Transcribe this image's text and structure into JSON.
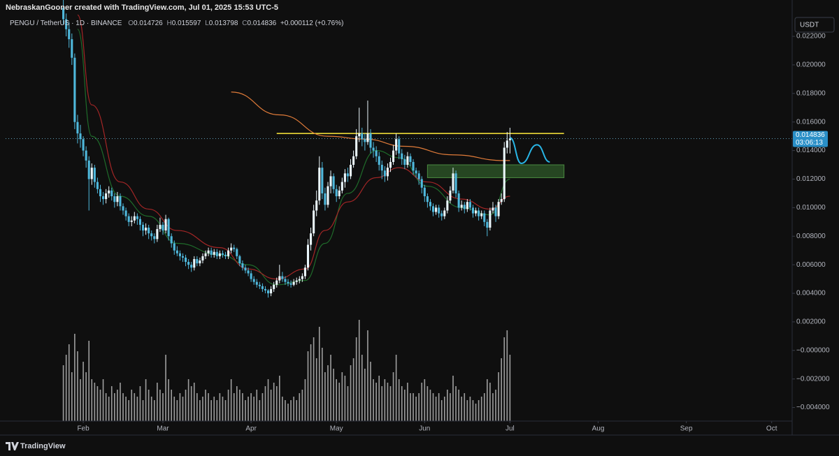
{
  "chart_data": {
    "type": "candlestick",
    "credit": "NebraskanGooner created with TradingView.com, Jul 01, 2025 15:53 UTC-5",
    "title": "PENGU / TetherUS · 1D · BINANCE",
    "ohlc_labels": [
      "O",
      "H",
      "L",
      "C"
    ],
    "change": "+0.000112 (+0.76%)",
    "currency": "USDT",
    "countdown": "03:06:13",
    "brand": "TradingView",
    "up_color": "#eaf6fb",
    "down_color": "#4fb8dc",
    "volume_color": "#cfcfcf",
    "grid": false,
    "open": [
      0.024,
      0.0232,
      0.0225,
      0.0218,
      0.0205,
      0.016,
      0.0152,
      0.0148,
      0.014,
      0.0133,
      0.012,
      0.0128,
      0.0118,
      0.0113,
      0.0108,
      0.0106,
      0.011,
      0.0112,
      0.0108,
      0.0104,
      0.0108,
      0.0101,
      0.0098,
      0.0094,
      0.009,
      0.0091,
      0.0094,
      0.0092,
      0.0088,
      0.0084,
      0.0086,
      0.0082,
      0.008,
      0.0078,
      0.0085,
      0.0088,
      0.0084,
      0.0092,
      0.008,
      0.0075,
      0.007,
      0.0068,
      0.0066,
      0.0065,
      0.0062,
      0.006,
      0.0058,
      0.0064,
      0.0061,
      0.0063,
      0.0066,
      0.0068,
      0.007,
      0.0067,
      0.0069,
      0.0066,
      0.0068,
      0.0067,
      0.0066,
      0.007,
      0.0072,
      0.0071,
      0.0066,
      0.0061,
      0.0058,
      0.0056,
      0.0054,
      0.005,
      0.0048,
      0.0046,
      0.0045,
      0.0043,
      0.0042,
      0.004,
      0.0043,
      0.0046,
      0.0049,
      0.0052,
      0.005,
      0.0048,
      0.0047,
      0.0046,
      0.0048,
      0.0049,
      0.005,
      0.0052,
      0.0058,
      0.0074,
      0.0082,
      0.0098,
      0.0105,
      0.0128,
      0.011,
      0.0102,
      0.0115,
      0.0122,
      0.0113,
      0.0108,
      0.0112,
      0.0118,
      0.0124,
      0.0122,
      0.013,
      0.0136,
      0.015,
      0.0152,
      0.0148,
      0.0146,
      0.0152,
      0.0142,
      0.014,
      0.0136,
      0.013,
      0.0126,
      0.0122,
      0.0128,
      0.0132,
      0.014,
      0.0148,
      0.0138,
      0.0134,
      0.013,
      0.0136,
      0.0132,
      0.0126,
      0.0124,
      0.012,
      0.0114,
      0.0108,
      0.0104,
      0.0101,
      0.0097,
      0.01,
      0.0096,
      0.0094,
      0.0098,
      0.0105,
      0.0112,
      0.0124,
      0.011,
      0.01,
      0.0102,
      0.0099,
      0.0104,
      0.01,
      0.0096,
      0.0098,
      0.0094,
      0.0096,
      0.009,
      0.0086,
      0.0098,
      0.01,
      0.0094,
      0.0104,
      0.0106,
      0.0142,
      0.014726
    ],
    "high": [
      0.0248,
      0.0236,
      0.023,
      0.0222,
      0.0208,
      0.0165,
      0.0158,
      0.015,
      0.0143,
      0.0136,
      0.0131,
      0.013,
      0.0121,
      0.0116,
      0.0111,
      0.0113,
      0.0115,
      0.0114,
      0.011,
      0.0111,
      0.011,
      0.0103,
      0.01,
      0.0096,
      0.0094,
      0.0097,
      0.0096,
      0.0094,
      0.009,
      0.0089,
      0.0088,
      0.0084,
      0.0082,
      0.0088,
      0.0093,
      0.009,
      0.0095,
      0.0093,
      0.0082,
      0.0077,
      0.0073,
      0.007,
      0.0068,
      0.0067,
      0.0064,
      0.0062,
      0.0066,
      0.0066,
      0.0065,
      0.0068,
      0.007,
      0.0072,
      0.0072,
      0.0071,
      0.0071,
      0.007,
      0.007,
      0.0069,
      0.0072,
      0.0075,
      0.0074,
      0.0072,
      0.0067,
      0.0063,
      0.006,
      0.0058,
      0.0056,
      0.0052,
      0.005,
      0.0048,
      0.0047,
      0.0045,
      0.0043,
      0.0045,
      0.0048,
      0.0051,
      0.006,
      0.0055,
      0.0052,
      0.005,
      0.0049,
      0.005,
      0.0051,
      0.0052,
      0.0054,
      0.006,
      0.0078,
      0.0086,
      0.0102,
      0.0112,
      0.0136,
      0.0132,
      0.0114,
      0.0118,
      0.0126,
      0.0124,
      0.0116,
      0.0115,
      0.0121,
      0.0127,
      0.0128,
      0.0134,
      0.014,
      0.0155,
      0.017,
      0.0156,
      0.0152,
      0.0175,
      0.0155,
      0.0146,
      0.0143,
      0.0139,
      0.0133,
      0.0129,
      0.0131,
      0.0135,
      0.0144,
      0.0152,
      0.015,
      0.0141,
      0.0137,
      0.0139,
      0.0138,
      0.0134,
      0.0128,
      0.0126,
      0.0122,
      0.0116,
      0.011,
      0.0106,
      0.0103,
      0.0102,
      0.0102,
      0.0098,
      0.01,
      0.0108,
      0.0115,
      0.0128,
      0.0126,
      0.0112,
      0.0105,
      0.0104,
      0.0106,
      0.0106,
      0.0102,
      0.01,
      0.01,
      0.0098,
      0.0098,
      0.0092,
      0.01,
      0.0104,
      0.0102,
      0.0106,
      0.011,
      0.0146,
      0.0153,
      0.015597
    ],
    "low": [
      0.0228,
      0.022,
      0.0212,
      0.02,
      0.0155,
      0.0145,
      0.0142,
      0.0136,
      0.0128,
      0.0098,
      0.0116,
      0.0114,
      0.011,
      0.0104,
      0.0102,
      0.0103,
      0.0107,
      0.0105,
      0.01,
      0.0101,
      0.0098,
      0.0095,
      0.0091,
      0.0087,
      0.0087,
      0.0089,
      0.0088,
      0.0084,
      0.008,
      0.0081,
      0.0078,
      0.0077,
      0.0075,
      0.0076,
      0.0083,
      0.0081,
      0.0082,
      0.0077,
      0.0072,
      0.0067,
      0.0066,
      0.0063,
      0.0062,
      0.0059,
      0.0057,
      0.0055,
      0.0056,
      0.0059,
      0.0059,
      0.0061,
      0.0064,
      0.0066,
      0.0065,
      0.0065,
      0.0064,
      0.0064,
      0.0065,
      0.0064,
      0.0064,
      0.0068,
      0.0069,
      0.0064,
      0.0059,
      0.0056,
      0.0054,
      0.0052,
      0.0048,
      0.0046,
      0.0044,
      0.0043,
      0.0041,
      0.004,
      0.0037,
      0.0038,
      0.0041,
      0.0044,
      0.0047,
      0.0048,
      0.0046,
      0.0045,
      0.0044,
      0.0045,
      0.0046,
      0.0047,
      0.0048,
      0.005,
      0.0056,
      0.007,
      0.008,
      0.0094,
      0.0102,
      0.0106,
      0.0098,
      0.01,
      0.011,
      0.011,
      0.0104,
      0.0106,
      0.011,
      0.0114,
      0.0118,
      0.012,
      0.0128,
      0.0134,
      0.0146,
      0.0143,
      0.014,
      0.0144,
      0.0138,
      0.0135,
      0.0132,
      0.0126,
      0.012,
      0.0118,
      0.0119,
      0.0125,
      0.013,
      0.0137,
      0.0134,
      0.013,
      0.0127,
      0.0128,
      0.0129,
      0.0123,
      0.0121,
      0.0116,
      0.011,
      0.0104,
      0.01,
      0.0098,
      0.0094,
      0.0095,
      0.0093,
      0.0091,
      0.0092,
      0.0096,
      0.0103,
      0.011,
      0.0107,
      0.0097,
      0.0098,
      0.0096,
      0.0097,
      0.0098,
      0.0093,
      0.0094,
      0.0091,
      0.0092,
      0.0087,
      0.008,
      0.0084,
      0.0096,
      0.009,
      0.0092,
      0.0102,
      0.0104,
      0.0138,
      0.013798
    ],
    "close": [
      0.0232,
      0.0225,
      0.0218,
      0.0205,
      0.016,
      0.0152,
      0.0148,
      0.014,
      0.0133,
      0.012,
      0.0128,
      0.0118,
      0.0113,
      0.0108,
      0.0106,
      0.011,
      0.0112,
      0.0108,
      0.0104,
      0.0108,
      0.0101,
      0.0098,
      0.0094,
      0.009,
      0.0091,
      0.0094,
      0.0092,
      0.0088,
      0.0084,
      0.0086,
      0.0082,
      0.008,
      0.0078,
      0.0085,
      0.0088,
      0.0084,
      0.0092,
      0.008,
      0.0075,
      0.007,
      0.0068,
      0.0066,
      0.0065,
      0.0062,
      0.006,
      0.0058,
      0.0064,
      0.0061,
      0.0063,
      0.0066,
      0.0068,
      0.007,
      0.0067,
      0.0069,
      0.0066,
      0.0068,
      0.0067,
      0.0066,
      0.007,
      0.0072,
      0.0071,
      0.0066,
      0.0061,
      0.0058,
      0.0056,
      0.0054,
      0.005,
      0.0048,
      0.0046,
      0.0045,
      0.0043,
      0.0042,
      0.004,
      0.0043,
      0.0046,
      0.0049,
      0.0052,
      0.005,
      0.0048,
      0.0047,
      0.0046,
      0.0048,
      0.0049,
      0.005,
      0.0052,
      0.0058,
      0.0074,
      0.0082,
      0.0098,
      0.0105,
      0.0128,
      0.011,
      0.0102,
      0.0115,
      0.0122,
      0.0113,
      0.0108,
      0.0112,
      0.0118,
      0.0124,
      0.0122,
      0.013,
      0.0136,
      0.015,
      0.0152,
      0.0148,
      0.0146,
      0.0152,
      0.0142,
      0.014,
      0.0136,
      0.013,
      0.0126,
      0.0122,
      0.0128,
      0.0132,
      0.014,
      0.0148,
      0.0138,
      0.0134,
      0.013,
      0.0136,
      0.0132,
      0.0126,
      0.0124,
      0.012,
      0.0114,
      0.0108,
      0.0104,
      0.0101,
      0.0097,
      0.01,
      0.0096,
      0.0094,
      0.0098,
      0.0105,
      0.0112,
      0.0124,
      0.011,
      0.01,
      0.0102,
      0.0099,
      0.0104,
      0.01,
      0.0096,
      0.0098,
      0.0094,
      0.0096,
      0.009,
      0.0086,
      0.0098,
      0.01,
      0.0094,
      0.0104,
      0.0106,
      0.0142,
      0.0147,
      0.014836
    ],
    "volume": [
      80,
      95,
      110,
      70,
      125,
      100,
      60,
      85,
      70,
      115,
      60,
      55,
      50,
      45,
      60,
      40,
      35,
      50,
      40,
      45,
      55,
      40,
      35,
      30,
      45,
      40,
      35,
      50,
      30,
      60,
      45,
      35,
      30,
      55,
      45,
      40,
      95,
      60,
      45,
      35,
      30,
      40,
      35,
      45,
      60,
      50,
      55,
      40,
      30,
      35,
      45,
      40,
      30,
      35,
      30,
      40,
      35,
      30,
      45,
      60,
      40,
      50,
      45,
      40,
      30,
      35,
      40,
      35,
      45,
      30,
      40,
      50,
      60,
      45,
      55,
      50,
      65,
      35,
      30,
      25,
      30,
      35,
      30,
      40,
      45,
      60,
      100,
      110,
      120,
      90,
      135,
      105,
      70,
      80,
      95,
      75,
      60,
      55,
      70,
      65,
      50,
      80,
      90,
      120,
      145,
      95,
      75,
      130,
      85,
      60,
      55,
      65,
      50,
      60,
      55,
      50,
      70,
      95,
      60,
      50,
      45,
      55,
      40,
      40,
      35,
      40,
      55,
      60,
      50,
      45,
      40,
      35,
      40,
      30,
      35,
      45,
      40,
      65,
      50,
      45,
      35,
      40,
      30,
      35,
      30,
      25,
      30,
      35,
      40,
      60,
      55,
      40,
      45,
      70,
      90,
      120,
      130,
      95
    ],
    "overlays": [
      {
        "color": "#1f6b2a",
        "x": [
          5,
          10,
          20,
          30,
          40,
          55,
          65,
          75,
          85,
          92,
          100,
          110,
          118,
          128,
          140,
          150,
          157
        ],
        "values": [
          0.0225,
          0.015,
          0.0108,
          0.0094,
          0.0075,
          0.0067,
          0.006,
          0.0046,
          0.0049,
          0.0075,
          0.011,
          0.014,
          0.0135,
          0.0115,
          0.01,
          0.0095,
          0.012
        ]
      },
      {
        "color": "#a32626",
        "x": [
          5,
          10,
          20,
          30,
          40,
          55,
          65,
          75,
          85,
          92,
          100,
          110,
          118,
          128,
          140,
          150,
          157
        ],
        "values": [
          0.0235,
          0.0172,
          0.0118,
          0.0099,
          0.0084,
          0.0072,
          0.0057,
          0.005,
          0.0057,
          0.0084,
          0.0104,
          0.0121,
          0.0128,
          0.0118,
          0.0106,
          0.0099,
          0.0108
        ]
      },
      {
        "color": "#e07b39",
        "x": [
          59,
          76,
          93,
          106,
          120,
          137,
          155,
          157
        ],
        "values": [
          0.0181,
          0.0165,
          0.015,
          0.0148,
          0.0143,
          0.0137,
          0.0133,
          0.0133
        ]
      }
    ],
    "annotations": {
      "resistance": {
        "color": "#ffeb3b",
        "y": 0.0152,
        "x": [
          75,
          176
        ]
      },
      "zone": {
        "color": "#2f5a2a",
        "y": [
          0.0121,
          0.013
        ],
        "x": [
          128,
          176
        ]
      },
      "projection": {
        "color": "#29b6e6",
        "x": [
          157,
          161,
          166.5,
          171
        ],
        "values": [
          0.0149,
          0.0131,
          0.0144,
          0.0132
        ]
      },
      "price_box_color": "#2a8fc7"
    },
    "xlim": [
      -20.3,
      256.2
    ],
    "xticks": [
      {
        "value": 7,
        "label": "Feb"
      },
      {
        "value": 35,
        "label": "Mar"
      },
      {
        "value": 66,
        "label": "Apr"
      },
      {
        "value": 96,
        "label": "May"
      },
      {
        "value": 127,
        "label": "Jun"
      },
      {
        "value": 157,
        "label": "Jul"
      },
      {
        "value": 188,
        "label": "Aug"
      },
      {
        "value": 219,
        "label": "Sep"
      },
      {
        "value": 249,
        "label": "Oct"
      }
    ],
    "ylim": [
      -0.00495,
      0.02347
    ],
    "yticks": [
      {
        "value": -0.004,
        "label": "−0.004000"
      },
      {
        "value": -0.002,
        "label": "−0.002000"
      },
      {
        "value": 0,
        "label": "−0.000000"
      },
      {
        "value": 0.002,
        "label": "0.002000"
      },
      {
        "value": 0.004,
        "label": "0.004000"
      },
      {
        "value": 0.006,
        "label": "0.006000"
      },
      {
        "value": 0.008,
        "label": "0.008000"
      },
      {
        "value": 0.01,
        "label": "0.010000"
      },
      {
        "value": 0.012,
        "label": "0.012000"
      },
      {
        "value": 0.014,
        "label": "0.014000"
      },
      {
        "value": 0.016,
        "label": "0.016000"
      },
      {
        "value": 0.018,
        "label": "0.018000"
      },
      {
        "value": 0.02,
        "label": "0.020000"
      },
      {
        "value": 0.022,
        "label": "0.022000"
      }
    ]
  }
}
